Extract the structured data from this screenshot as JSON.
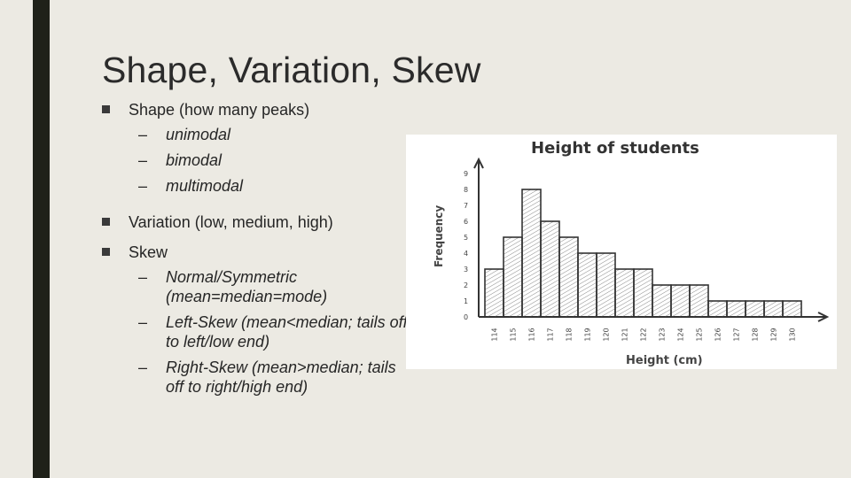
{
  "slide": {
    "title": "Shape, Variation, Skew",
    "bullets": [
      {
        "text": "Shape (how many peaks)",
        "subs": [
          "unimodal",
          "bimodal",
          "multimodal"
        ]
      },
      {
        "text": "Variation (low, medium, high)",
        "subs": []
      },
      {
        "text": "Skew",
        "subs": [
          "Normal/Symmetric (mean=median=mode)",
          "Left-Skew (mean<median; tails off to left/low end)",
          "Right-Skew (mean>median; tails off to right/high end)"
        ]
      }
    ],
    "dash": "–"
  },
  "chart_data": {
    "type": "bar",
    "title": "Height of students",
    "xlabel": "Height (cm)",
    "ylabel": "Frequency",
    "categories": [
      "114",
      "115",
      "116",
      "117",
      "118",
      "119",
      "120",
      "121",
      "122",
      "123",
      "124",
      "125",
      "126",
      "127",
      "128",
      "129",
      "130"
    ],
    "values": [
      3,
      5,
      8,
      6,
      5,
      4,
      4,
      3,
      3,
      2,
      2,
      2,
      1,
      1,
      1,
      1,
      1
    ],
    "ylim": [
      0,
      9
    ],
    "y_ticks": [
      "0",
      "1",
      "2",
      "3",
      "4",
      "5",
      "6",
      "7",
      "8",
      "9"
    ],
    "colors": {
      "bar_fill": "#ffffff",
      "bar_stroke": "#333333",
      "hatch": "#777777"
    }
  }
}
